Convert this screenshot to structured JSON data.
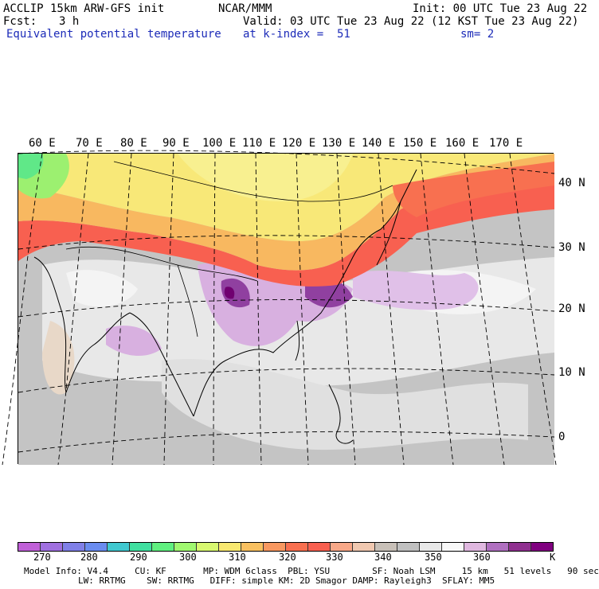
{
  "header": {
    "model_line": "ACCLIP 15km ARW-GFS init",
    "center": "NCAR/MMM",
    "init": "Init: 00 UTC Tue 23 Aug 22",
    "fcst_label": "Fcst:",
    "fcst_value": "3 h",
    "valid": "Valid: 03 UTC Tue 23 Aug 22 (12 KST Tue 23 Aug 22)",
    "field": "Equivalent potential temperature",
    "level": "at k-index =  51",
    "smoothing": "sm= 2"
  },
  "map": {
    "longitude_labels": [
      "60 E",
      "70 E",
      "80 E",
      "90 E",
      "100 E",
      "110 E",
      "120 E",
      "130 E",
      "140 E",
      "150 E",
      "160 E",
      "170 E"
    ],
    "latitude_labels": [
      "40 N",
      "30 N",
      "20 N",
      "10 N",
      "0"
    ]
  },
  "colorbar": {
    "colors": [
      "#c060d8",
      "#a070e0",
      "#8080e8",
      "#6a8cf0",
      "#40c8d0",
      "#40e0a0",
      "#60f080",
      "#a0f870",
      "#d8f870",
      "#f8e870",
      "#f8c060",
      "#f89860",
      "#f87050",
      "#f86050",
      "#f8a888",
      "#f0c8b0",
      "#c8c0b8",
      "#c0c0c0",
      "#e8e8e8",
      "#f8f8f8",
      "#e0b8e0",
      "#b070c0",
      "#903090",
      "#800080"
    ],
    "tick_labels": [
      "270",
      "280",
      "290",
      "300",
      "310",
      "320",
      "330",
      "340",
      "350",
      "360"
    ],
    "unit": "K"
  },
  "footer": {
    "line1": "Model Info: V4.4     CU: KF       MP: WDM 6class  PBL: YSU        SF: Noah LSM     15 km   51 levels   90 sec",
    "line2": "LW: RRTMG    SW: RRTMG   DIFF: simple KM: 2D Smagor DAMP: Rayleigh3  SFLAY: MM5"
  }
}
